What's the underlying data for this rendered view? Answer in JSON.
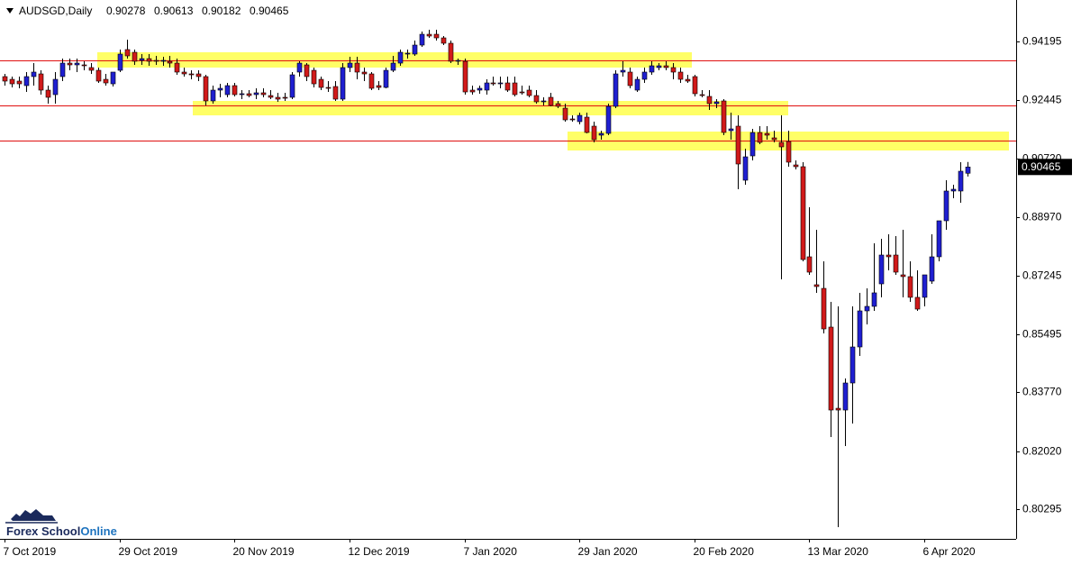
{
  "chart_data": {
    "type": "candlestick",
    "symbol": "AUDSGD,Daily",
    "up_color": "#1f1fd1",
    "down_color": "#d11a1a",
    "categories": [
      "7 Oct 2019",
      null,
      null,
      null,
      null,
      null,
      null,
      null,
      null,
      null,
      null,
      null,
      null,
      null,
      null,
      null,
      "29 Oct 2019",
      null,
      null,
      null,
      null,
      null,
      null,
      null,
      null,
      null,
      null,
      null,
      null,
      null,
      null,
      null,
      "20 Nov 2019",
      null,
      null,
      null,
      null,
      null,
      null,
      null,
      null,
      null,
      null,
      null,
      null,
      null,
      null,
      null,
      "12 Dec 2019",
      null,
      null,
      null,
      null,
      null,
      null,
      null,
      null,
      null,
      null,
      null,
      null,
      null,
      null,
      null,
      "7 Jan 2020",
      null,
      null,
      null,
      null,
      null,
      null,
      null,
      null,
      null,
      null,
      null,
      null,
      null,
      null,
      null,
      "29 Jan 2020",
      null,
      null,
      null,
      null,
      null,
      null,
      null,
      null,
      null,
      null,
      null,
      null,
      null,
      null,
      null,
      "20 Feb 2020",
      null,
      null,
      null,
      null,
      null,
      null,
      null,
      null,
      null,
      null,
      null,
      null,
      null,
      null,
      null,
      "13 Mar 2020",
      null,
      null,
      null,
      null,
      null,
      null,
      null,
      null,
      null,
      null,
      null,
      null,
      null,
      null,
      null,
      "6 Apr 2020",
      null,
      null,
      null,
      null,
      null,
      null
    ],
    "open": [
      0.93151,
      0.9307,
      0.93017,
      0.92883,
      0.93151,
      0.93231,
      0.92749,
      0.92615,
      0.93151,
      0.93552,
      0.93499,
      0.93499,
      0.93419,
      0.93338,
      0.9307,
      0.92936,
      0.93338,
      0.93954,
      0.93874,
      0.93633,
      0.93686,
      0.93633,
      0.93606,
      0.93606,
      0.93552,
      0.93285,
      0.93231,
      0.93231,
      0.93151,
      0.92428,
      0.92749,
      0.92615,
      0.92883,
      0.92615,
      0.92642,
      0.92615,
      0.92669,
      0.92588,
      0.92535,
      0.92535,
      0.92535,
      0.93285,
      0.93499,
      0.93338,
      0.9307,
      0.92829,
      0.92856,
      0.92481,
      0.93419,
      0.93552,
      0.93285,
      0.93231,
      0.92883,
      0.92829,
      0.93338,
      0.93552,
      0.9382,
      0.9382,
      0.94088,
      0.94409,
      0.94409,
      0.94302,
      0.94142,
      0.93606,
      0.93606,
      0.92749,
      0.92749,
      0.92749,
      0.92963,
      0.92936,
      0.92963,
      0.92963,
      0.92695,
      0.92749,
      0.92588,
      0.92401,
      0.92535,
      0.92347,
      0.92213,
      0.91892,
      0.91812,
      0.91946,
      0.91678,
      0.9141,
      0.91463,
      0.92267,
      0.93285,
      0.93285,
      0.92749,
      0.9307,
      0.93285,
      0.93419,
      0.93472,
      0.93419,
      0.93285,
      0.9307,
      0.93151,
      0.92615,
      0.92562,
      0.92347,
      0.92428,
      0.91544,
      0.91678,
      0.90071,
      0.90794,
      0.9149,
      0.91463,
      0.9133,
      0.91196,
      0.91223,
      0.90526,
      0.90473,
      0.87795,
      0.86965,
      0.86857,
      0.85706,
      0.83294,
      0.83241,
      0.84045,
      0.85116,
      0.86188,
      0.86322,
      0.86991,
      0.87848,
      0.87848,
      0.87259,
      0.87206,
      0.8659,
      0.8659,
      0.87072,
      0.87795,
      0.88866,
      0.8975,
      0.8975,
      0.90278
    ],
    "high": [
      0.93231,
      0.93151,
      0.93151,
      0.93285,
      0.93552,
      0.93338,
      0.92883,
      0.93285,
      0.93686,
      0.93686,
      0.93686,
      0.93606,
      0.93552,
      0.93419,
      0.93231,
      0.93285,
      0.93954,
      0.94249,
      0.93954,
      0.9382,
      0.9382,
      0.93767,
      0.9374,
      0.93767,
      0.93686,
      0.93419,
      0.93338,
      0.93338,
      0.93204,
      0.92883,
      0.92936,
      0.92963,
      0.92963,
      0.92749,
      0.92749,
      0.92803,
      0.92803,
      0.92749,
      0.92669,
      0.92669,
      0.93285,
      0.93606,
      0.93552,
      0.93419,
      0.93151,
      0.93017,
      0.93017,
      0.93552,
      0.9374,
      0.9374,
      0.93419,
      0.93285,
      0.93017,
      0.93419,
      0.93767,
      0.93954,
      0.93954,
      0.94222,
      0.9449,
      0.94543,
      0.94543,
      0.94356,
      0.94222,
      0.93686,
      0.93686,
      0.92883,
      0.92883,
      0.9307,
      0.93151,
      0.93151,
      0.93151,
      0.93151,
      0.92883,
      0.92883,
      0.92749,
      0.92535,
      0.92669,
      0.92428,
      0.92347,
      0.91999,
      0.9208,
      0.9208,
      0.91812,
      0.91544,
      0.92347,
      0.93338,
      0.93606,
      0.93419,
      0.93151,
      0.93419,
      0.93606,
      0.93552,
      0.93606,
      0.93552,
      0.93419,
      0.93204,
      0.93204,
      0.92749,
      0.92749,
      0.92481,
      0.92481,
      0.9208,
      0.91999,
      0.91008,
      0.91597,
      0.91678,
      0.91678,
      0.91544,
      0.91999,
      0.91544,
      0.9066,
      0.90607,
      0.89268,
      0.88598,
      0.87661,
      0.86456,
      0.86322,
      0.84179,
      0.86322,
      0.86724,
      0.86857,
      0.88196,
      0.8833,
      0.88464,
      0.88411,
      0.88598,
      0.87661,
      0.87393,
      0.87259,
      0.88464,
      0.88866,
      0.90071,
      0.89937,
      0.90607,
      0.90613
    ],
    "low": [
      0.92883,
      0.92829,
      0.92803,
      0.92695,
      0.92883,
      0.92615,
      0.92347,
      0.92347,
      0.93017,
      0.93338,
      0.93285,
      0.93338,
      0.93231,
      0.92963,
      0.92883,
      0.92856,
      0.93285,
      0.93686,
      0.93499,
      0.93499,
      0.93472,
      0.93499,
      0.93472,
      0.93419,
      0.93204,
      0.93151,
      0.9307,
      0.93017,
      0.92294,
      0.92347,
      0.92535,
      0.92535,
      0.92562,
      0.92481,
      0.92535,
      0.92481,
      0.92535,
      0.92481,
      0.92401,
      0.92428,
      0.92481,
      0.93151,
      0.93017,
      0.92829,
      0.92749,
      0.92695,
      0.92428,
      0.92428,
      0.93285,
      0.9307,
      0.93017,
      0.92749,
      0.92749,
      0.92803,
      0.93285,
      0.93472,
      0.93686,
      0.93767,
      0.94034,
      0.94302,
      0.94222,
      0.94088,
      0.93552,
      0.93499,
      0.92615,
      0.92615,
      0.92642,
      0.92615,
      0.92883,
      0.92803,
      0.92695,
      0.92562,
      0.92615,
      0.92535,
      0.92347,
      0.92294,
      0.92267,
      0.92213,
      0.91812,
      0.91812,
      0.91731,
      0.91463,
      0.91196,
      0.91276,
      0.9141,
      0.92213,
      0.93151,
      0.92803,
      0.92695,
      0.92963,
      0.93204,
      0.93338,
      0.93338,
      0.9307,
      0.92963,
      0.92963,
      0.92562,
      0.92535,
      0.9216,
      0.92213,
      0.9141,
      0.91276,
      0.89803,
      0.89937,
      0.9066,
      0.91142,
      0.91276,
      0.91196,
      0.87125,
      0.90473,
      0.90392,
      0.87661,
      0.87259,
      0.86724,
      0.85518,
      0.82438,
      0.79761,
      0.82171,
      0.8284,
      0.84849,
      0.85786,
      0.86188,
      0.8659,
      0.87393,
      0.87259,
      0.8659,
      0.86456,
      0.86188,
      0.86322,
      0.86991,
      0.87661,
      0.88598,
      0.89535,
      0.89401,
      0.90182
    ],
    "close": [
      0.93017,
      0.92936,
      0.92936,
      0.93151,
      0.93285,
      0.92749,
      0.92535,
      0.9307,
      0.93552,
      0.93499,
      0.93552,
      0.93472,
      0.93338,
      0.93017,
      0.92963,
      0.93285,
      0.9382,
      0.93767,
      0.93606,
      0.93686,
      0.93606,
      0.93606,
      0.93633,
      0.93552,
      0.93285,
      0.93231,
      0.93204,
      0.93151,
      0.92428,
      0.92749,
      0.92803,
      0.92883,
      0.92615,
      0.92642,
      0.92588,
      0.92669,
      0.92615,
      0.92535,
      0.92481,
      0.92508,
      0.93204,
      0.93552,
      0.93151,
      0.92936,
      0.92829,
      0.92803,
      0.92481,
      0.93419,
      0.93552,
      0.93285,
      0.93231,
      0.92803,
      0.92829,
      0.93338,
      0.93552,
      0.93874,
      0.93847,
      0.94088,
      0.94409,
      0.94356,
      0.94302,
      0.94142,
      0.93606,
      0.93633,
      0.92695,
      0.92695,
      0.92803,
      0.92963,
      0.92936,
      0.92963,
      0.92749,
      0.92615,
      0.92669,
      0.92588,
      0.92401,
      0.92428,
      0.92294,
      0.92267,
      0.91865,
      0.91865,
      0.91999,
      0.9149,
      0.91276,
      0.91463,
      0.92267,
      0.93231,
      0.93338,
      0.92883,
      0.9307,
      0.93285,
      0.93472,
      0.93472,
      0.93419,
      0.93285,
      0.9307,
      0.93017,
      0.92642,
      0.92588,
      0.92347,
      0.92401,
      0.9149,
      0.91597,
      0.90553,
      0.90767,
      0.9149,
      0.91196,
      0.9141,
      0.91276,
      0.91062,
      0.90607,
      0.90473,
      0.87714,
      0.87339,
      0.86911,
      0.85652,
      0.83241,
      0.83241,
      0.84045,
      0.85116,
      0.86188,
      0.86322,
      0.86724,
      0.87848,
      0.87795,
      0.87339,
      0.87206,
      0.8659,
      0.86241,
      0.87259,
      0.87795,
      0.88866,
      0.8975,
      0.89803,
      0.90339,
      0.90465
    ],
    "ylim": [
      0.79412,
      0.95347
    ],
    "yticks": [
      0.94195,
      0.92445,
      {
        "value": 0.9072,
        "label": "0.90720"
      },
      {
        "value": 0.8897,
        "label": "0.88970"
      },
      0.87245,
      0.85495,
      {
        "value": 0.8377,
        "label": "0.83770"
      },
      {
        "value": 0.8202,
        "label": "0.82020"
      },
      0.80295
    ],
    "levels": [
      0.93633,
      0.92294,
      0.91249
    ],
    "level_color": "#e01010",
    "zones": [
      {
        "from": 0.93419,
        "to": 0.93874
      },
      {
        "from": 0.91999,
        "to": 0.92428
      },
      {
        "from": 0.90955,
        "to": 0.91517
      }
    ],
    "zone_color": "#ffff66"
  },
  "watermark": {
    "brand": "Forex School",
    "accent": "Online"
  }
}
